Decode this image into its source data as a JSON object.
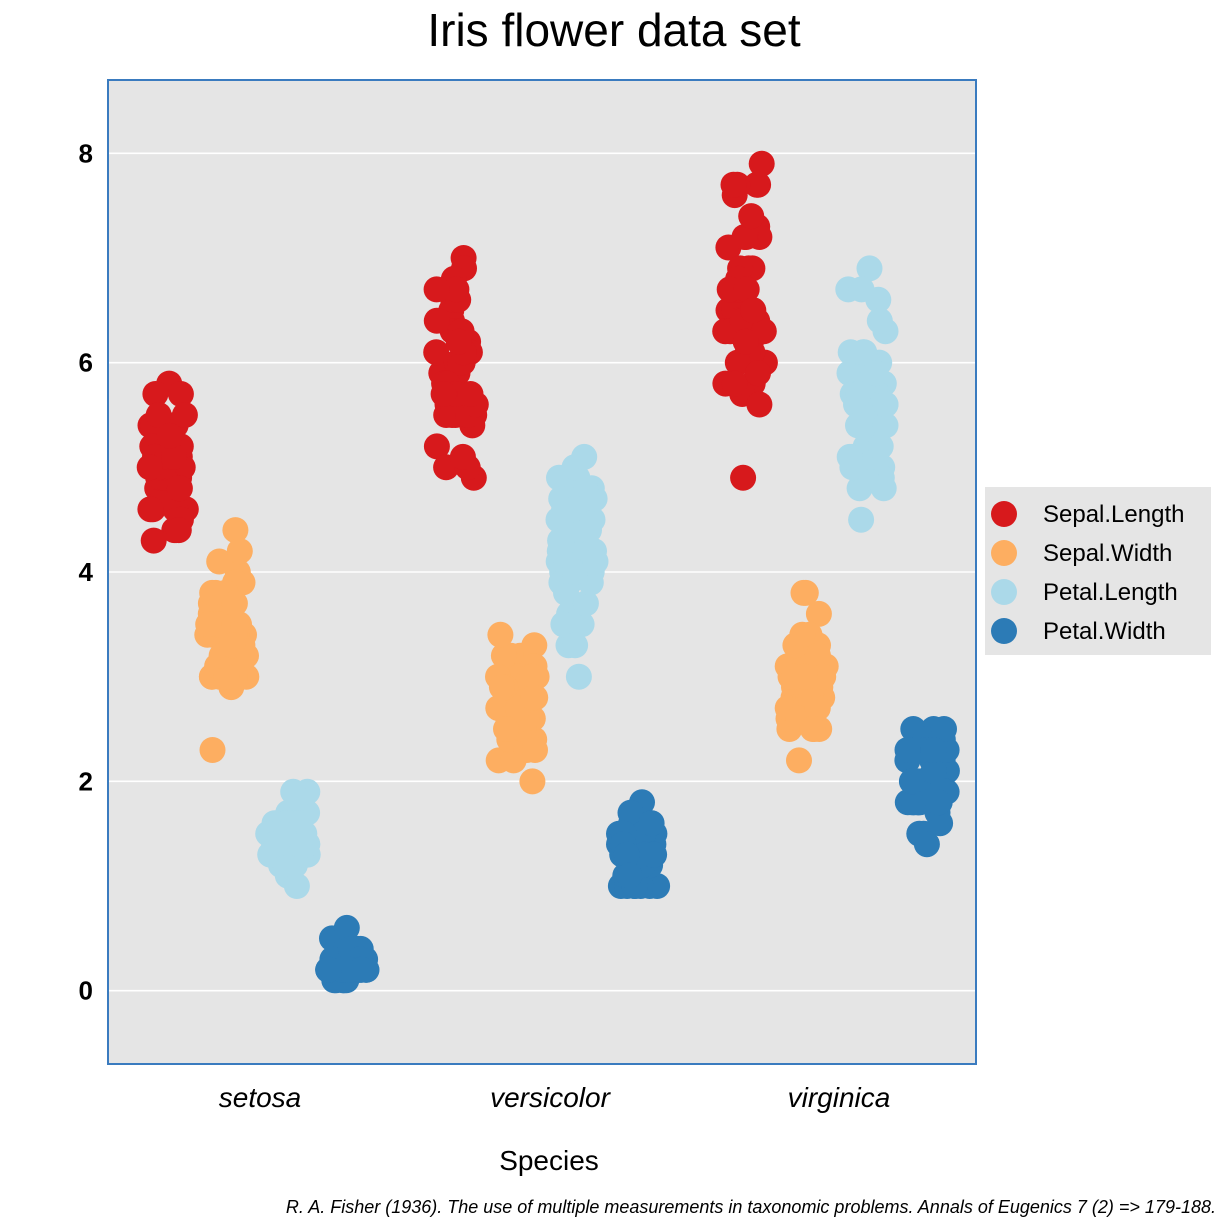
{
  "chart_data": {
    "type": "scatter",
    "title": "Iris flower data set",
    "xlabel": "Species",
    "ylabel": "",
    "categories": [
      "setosa",
      "versicolor",
      "virginica"
    ],
    "y_ticks": [
      "0",
      "2",
      "4",
      "6",
      "8"
    ],
    "ylim": [
      -0.7,
      8.7
    ],
    "grid": "horizontal",
    "legend_position": "right",
    "caption": "R. A. Fisher (1936). The use of multiple measurements in taxonomic problems. Annals of Eugenics 7 (2) => 179-188.",
    "colors": {
      "panel_bg": "#e5e5e5",
      "panel_border": "#3a7bbf",
      "legend_bg": "#e5e5e5"
    },
    "series": [
      {
        "name": "Sepal.Length",
        "color": "#d7191c",
        "values": {
          "setosa": [
            5.1,
            4.9,
            4.7,
            4.6,
            5.0,
            5.4,
            4.6,
            5.0,
            4.4,
            4.9,
            5.4,
            4.8,
            4.8,
            4.3,
            5.8,
            5.7,
            5.4,
            5.1,
            5.7,
            5.1,
            5.4,
            5.1,
            4.6,
            5.1,
            4.8,
            5.0,
            5.0,
            5.2,
            5.2,
            4.7,
            4.8,
            5.4,
            5.2,
            5.5,
            4.9,
            5.0,
            5.5,
            4.9,
            4.4,
            5.1,
            5.0,
            4.5,
            4.4,
            5.0,
            5.1,
            4.8,
            5.1,
            4.6,
            5.3,
            5.0
          ],
          "versicolor": [
            7.0,
            6.4,
            6.9,
            5.5,
            6.5,
            5.7,
            6.3,
            4.9,
            6.6,
            5.2,
            5.0,
            5.9,
            6.0,
            6.1,
            5.6,
            6.7,
            5.6,
            5.8,
            6.2,
            5.6,
            5.9,
            6.1,
            6.3,
            6.1,
            6.4,
            6.6,
            6.8,
            6.7,
            6.0,
            5.7,
            5.5,
            5.5,
            5.8,
            6.0,
            5.4,
            6.0,
            6.7,
            6.3,
            5.6,
            5.5,
            5.5,
            6.1,
            5.8,
            5.0,
            5.6,
            5.7,
            5.7,
            6.2,
            5.1,
            5.7
          ],
          "virginica": [
            6.3,
            5.8,
            7.1,
            6.3,
            6.5,
            7.6,
            4.9,
            7.3,
            6.7,
            7.2,
            6.5,
            6.4,
            6.8,
            5.7,
            5.8,
            6.4,
            6.5,
            7.7,
            7.7,
            6.0,
            6.9,
            5.6,
            7.7,
            6.3,
            6.7,
            7.2,
            6.2,
            6.1,
            6.4,
            7.2,
            7.4,
            7.9,
            6.4,
            6.3,
            6.1,
            7.7,
            6.3,
            6.4,
            6.0,
            6.9,
            6.7,
            6.9,
            5.8,
            6.8,
            6.7,
            6.7,
            6.3,
            6.5,
            6.2,
            5.9
          ]
        }
      },
      {
        "name": "Sepal.Width",
        "color": "#fdae61",
        "values": {
          "setosa": [
            3.5,
            3.0,
            3.2,
            3.1,
            3.6,
            3.9,
            3.4,
            3.4,
            2.9,
            3.1,
            3.7,
            3.4,
            3.0,
            3.0,
            4.0,
            4.4,
            3.9,
            3.5,
            3.8,
            3.8,
            3.4,
            3.7,
            3.6,
            3.3,
            3.4,
            3.0,
            3.4,
            3.5,
            3.4,
            3.2,
            3.1,
            3.4,
            4.1,
            4.2,
            3.1,
            3.2,
            3.5,
            3.6,
            3.0,
            3.4,
            3.5,
            2.3,
            3.2,
            3.5,
            3.8,
            3.0,
            3.8,
            3.2,
            3.7,
            3.3
          ],
          "versicolor": [
            3.2,
            3.2,
            3.1,
            2.3,
            2.8,
            2.8,
            3.3,
            2.4,
            2.9,
            2.7,
            2.0,
            3.0,
            2.2,
            2.9,
            2.9,
            3.1,
            3.0,
            2.7,
            2.2,
            2.5,
            3.2,
            2.8,
            2.5,
            2.8,
            2.9,
            3.0,
            2.8,
            3.0,
            2.9,
            2.6,
            2.4,
            2.4,
            2.7,
            2.7,
            3.0,
            3.4,
            3.1,
            2.3,
            3.0,
            2.5,
            2.6,
            3.0,
            2.6,
            2.3,
            2.7,
            3.0,
            2.9,
            2.9,
            2.5,
            2.8
          ],
          "virginica": [
            3.3,
            2.7,
            3.0,
            2.9,
            3.0,
            3.0,
            2.5,
            2.9,
            2.5,
            3.6,
            3.2,
            2.7,
            3.0,
            2.5,
            2.8,
            3.2,
            3.0,
            3.8,
            2.6,
            2.2,
            3.2,
            2.8,
            2.8,
            2.7,
            3.3,
            3.2,
            2.8,
            3.0,
            2.8,
            3.0,
            2.8,
            3.8,
            2.8,
            2.8,
            2.6,
            3.0,
            3.4,
            3.1,
            3.0,
            3.1,
            3.1,
            3.1,
            2.7,
            3.2,
            3.3,
            3.0,
            2.5,
            3.0,
            3.4,
            3.0
          ]
        }
      },
      {
        "name": "Petal.Length",
        "color": "#abd9e9",
        "values": {
          "setosa": [
            1.4,
            1.4,
            1.3,
            1.5,
            1.4,
            1.7,
            1.4,
            1.5,
            1.4,
            1.5,
            1.5,
            1.6,
            1.4,
            1.1,
            1.2,
            1.5,
            1.3,
            1.4,
            1.7,
            1.5,
            1.7,
            1.5,
            1.0,
            1.7,
            1.9,
            1.6,
            1.6,
            1.5,
            1.4,
            1.6,
            1.6,
            1.5,
            1.5,
            1.4,
            1.5,
            1.2,
            1.3,
            1.4,
            1.3,
            1.5,
            1.3,
            1.3,
            1.3,
            1.6,
            1.9,
            1.4,
            1.6,
            1.4,
            1.5,
            1.4
          ],
          "versicolor": [
            4.7,
            4.5,
            4.9,
            4.0,
            4.6,
            4.5,
            4.7,
            3.3,
            4.6,
            3.9,
            3.5,
            4.2,
            4.0,
            4.7,
            3.6,
            4.4,
            4.5,
            4.1,
            4.5,
            3.9,
            4.8,
            4.0,
            4.9,
            4.7,
            4.3,
            4.4,
            4.8,
            5.0,
            4.5,
            3.5,
            3.8,
            3.7,
            3.9,
            5.1,
            4.5,
            4.5,
            4.7,
            4.4,
            4.1,
            4.0,
            4.4,
            4.6,
            4.0,
            3.3,
            4.2,
            4.2,
            4.2,
            4.3,
            3.0,
            4.1
          ],
          "virginica": [
            6.0,
            5.1,
            5.9,
            5.6,
            5.8,
            6.6,
            4.5,
            6.3,
            5.8,
            6.1,
            5.1,
            5.3,
            5.5,
            5.0,
            5.1,
            5.3,
            5.5,
            6.7,
            6.9,
            5.0,
            5.7,
            4.9,
            6.7,
            4.9,
            5.7,
            6.0,
            4.8,
            4.9,
            5.6,
            5.8,
            6.1,
            6.4,
            5.6,
            5.1,
            5.6,
            6.1,
            5.6,
            5.5,
            4.8,
            5.4,
            5.6,
            5.1,
            5.1,
            5.9,
            5.7,
            5.2,
            5.0,
            5.2,
            5.4,
            5.1
          ]
        }
      },
      {
        "name": "Petal.Width",
        "color": "#2c7bb6",
        "values": {
          "setosa": [
            0.2,
            0.2,
            0.2,
            0.2,
            0.2,
            0.4,
            0.3,
            0.2,
            0.2,
            0.1,
            0.2,
            0.2,
            0.1,
            0.1,
            0.2,
            0.4,
            0.4,
            0.3,
            0.3,
            0.3,
            0.2,
            0.4,
            0.2,
            0.5,
            0.2,
            0.2,
            0.4,
            0.2,
            0.2,
            0.2,
            0.2,
            0.4,
            0.1,
            0.2,
            0.2,
            0.2,
            0.2,
            0.1,
            0.2,
            0.2,
            0.3,
            0.3,
            0.2,
            0.6,
            0.4,
            0.3,
            0.2,
            0.2,
            0.2,
            0.2
          ],
          "versicolor": [
            1.4,
            1.5,
            1.5,
            1.3,
            1.5,
            1.3,
            1.6,
            1.0,
            1.3,
            1.4,
            1.0,
            1.5,
            1.0,
            1.4,
            1.3,
            1.4,
            1.5,
            1.0,
            1.5,
            1.1,
            1.8,
            1.3,
            1.5,
            1.2,
            1.3,
            1.4,
            1.4,
            1.7,
            1.5,
            1.0,
            1.1,
            1.0,
            1.2,
            1.6,
            1.5,
            1.6,
            1.5,
            1.3,
            1.3,
            1.3,
            1.2,
            1.4,
            1.2,
            1.0,
            1.3,
            1.2,
            1.3,
            1.3,
            1.1,
            1.3
          ],
          "virginica": [
            2.5,
            1.9,
            2.1,
            1.8,
            2.2,
            2.1,
            1.7,
            1.8,
            1.8,
            2.5,
            2.0,
            1.9,
            2.1,
            2.0,
            2.4,
            2.3,
            1.8,
            2.2,
            2.3,
            1.5,
            2.3,
            2.0,
            2.0,
            1.8,
            2.1,
            1.8,
            1.8,
            1.8,
            2.1,
            1.6,
            1.9,
            2.0,
            2.2,
            1.5,
            1.4,
            2.3,
            2.4,
            1.8,
            1.8,
            2.1,
            2.4,
            2.3,
            1.9,
            2.3,
            2.5,
            2.3,
            1.9,
            2.0,
            2.3,
            1.8
          ]
        }
      }
    ]
  }
}
